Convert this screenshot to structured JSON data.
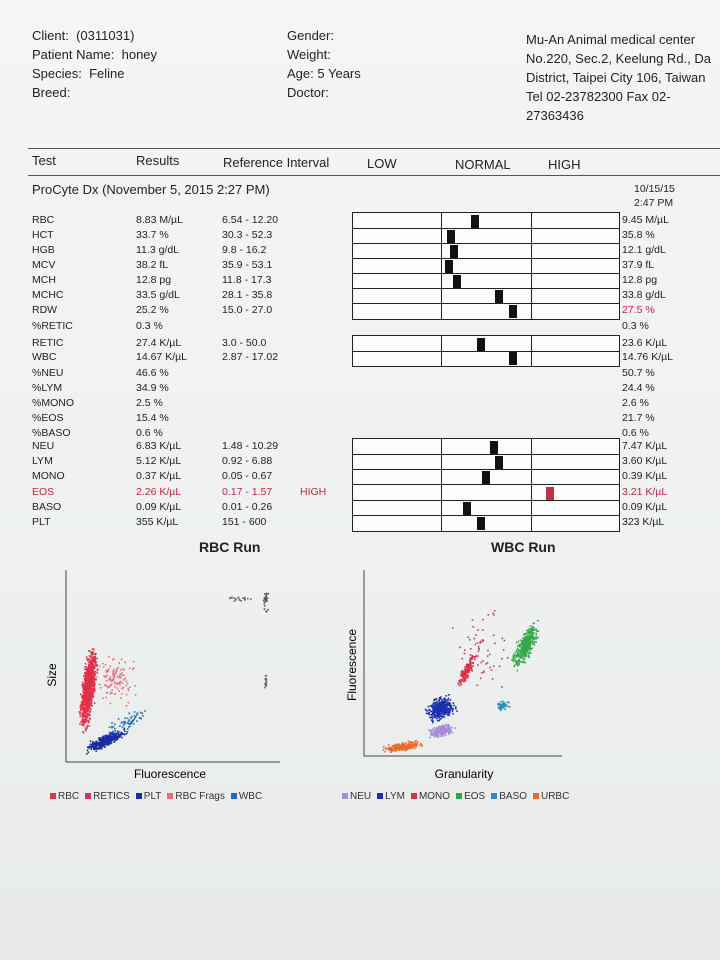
{
  "patient": {
    "client_label": "Client:",
    "client_value": "(0311031)",
    "name_label": "Patient Name:",
    "name_value": "honey",
    "species_label": "Species:",
    "species_value": "Feline",
    "breed_label": "Breed:",
    "gender_label": "Gender:",
    "weight_label": "Weight:",
    "age_label": "Age:",
    "age_value": "5 Years",
    "doctor_label": "Doctor:"
  },
  "clinic": {
    "name": "Mu-An Animal medical center",
    "address1": "No.220, Sec.2, Keelung Rd., Da",
    "address2": "District, Taipei City 106, Taiwan",
    "phone1": "Tel 02-23782300  Fax 02-",
    "phone2": "27363436"
  },
  "columns": {
    "test": "Test",
    "results": "Results",
    "reference": "Reference Interval",
    "low": "LOW",
    "normal": "NORMAL",
    "high": "HIGH"
  },
  "run": {
    "title": "ProCyte Dx (November 5, 2015 2:27 PM)",
    "prev_date": "10/15/15",
    "prev_time": "2:47 PM"
  },
  "rows": [
    {
      "name": "RBC",
      "result": "8.83 M/µL",
      "ref": "6.54 - 12.20",
      "flag": "",
      "prev": "9.45 M/µL",
      "gauge": 0.46
    },
    {
      "name": "HCT",
      "result": "33.7 %",
      "ref": "30.3 - 52.3",
      "flag": "",
      "prev": "35.8 %",
      "gauge": 0.37
    },
    {
      "name": "HGB",
      "result": "11.3 g/dL",
      "ref": "9.8 - 16.2",
      "flag": "",
      "prev": "12.1 g/dL",
      "gauge": 0.38
    },
    {
      "name": "MCV",
      "result": "38.2 fL",
      "ref": "35.9 - 53.1",
      "flag": "",
      "prev": "37.9 fL",
      "gauge": 0.36
    },
    {
      "name": "MCH",
      "result": "12.8 pg",
      "ref": "11.8 - 17.3",
      "flag": "",
      "prev": "12.8 pg",
      "gauge": 0.39
    },
    {
      "name": "MCHC",
      "result": "33.5 g/dL",
      "ref": "28.1 - 35.8",
      "flag": "",
      "prev": "33.8 g/dL",
      "gauge": 0.55
    },
    {
      "name": "RDW",
      "result": "25.2 %",
      "ref": "15.0 - 27.0",
      "flag": "",
      "prev": "27.5 %",
      "gauge": 0.6,
      "prev_warn": true
    },
    {
      "name": "%RETIC",
      "result": "0.3 %",
      "ref": "",
      "flag": "",
      "prev": "0.3 %"
    },
    {
      "name": "RETIC",
      "result": "27.4 K/µL",
      "ref": "3.0 - 50.0",
      "flag": "",
      "prev": "23.6 K/µL",
      "gauge": 0.48
    },
    {
      "name": "WBC",
      "result": "14.67 K/µL",
      "ref": "2.87 - 17.02",
      "flag": "",
      "prev": "14.76 K/µL",
      "gauge": 0.6
    },
    {
      "name": "%NEU",
      "result": "46.6 %",
      "ref": "",
      "flag": "",
      "prev": "50.7 %"
    },
    {
      "name": "%LYM",
      "result": "34.9 %",
      "ref": "",
      "flag": "",
      "prev": "24.4 %"
    },
    {
      "name": "%MONO",
      "result": "2.5 %",
      "ref": "",
      "flag": "",
      "prev": "2.6 %"
    },
    {
      "name": "%EOS",
      "result": "15.4 %",
      "ref": "",
      "flag": "",
      "prev": "21.7 %"
    },
    {
      "name": "%BASO",
      "result": "0.6 %",
      "ref": "",
      "flag": "",
      "prev": "0.6 %"
    },
    {
      "name": "NEU",
      "result": "6.83 K/µL",
      "ref": "1.48 - 10.29",
      "flag": "",
      "prev": "7.47 K/µL",
      "gauge": 0.53
    },
    {
      "name": "LYM",
      "result": "5.12 K/µL",
      "ref": "0.92 - 6.88",
      "flag": "",
      "prev": "3.60 K/µL",
      "gauge": 0.55
    },
    {
      "name": "MONO",
      "result": "0.37 K/µL",
      "ref": "0.05 - 0.67",
      "flag": "",
      "prev": "0.39 K/µL",
      "gauge": 0.5
    },
    {
      "name": "EOS",
      "result": "2.26 K/µL",
      "ref": "0.17 - 1.57",
      "flag": "HIGH",
      "prev": "3.21 K/µL",
      "gauge": 0.74,
      "high": true
    },
    {
      "name": "BASO",
      "result": "0.09 K/µL",
      "ref": "0.01 - 0.26",
      "flag": "",
      "prev": "0.09 K/µL",
      "gauge": 0.43
    },
    {
      "name": "PLT",
      "result": "355 K/µL",
      "ref": "151 - 600",
      "flag": "",
      "prev": "323 K/µL",
      "gauge": 0.48
    }
  ],
  "rbc_plot": {
    "title": "RBC Run",
    "xlabel": "Fluorescence",
    "ylabel": "Size",
    "legend": [
      {
        "label": "RBC",
        "color": "#e0304a"
      },
      {
        "label": "RETICS",
        "color": "#d6306a"
      },
      {
        "label": "PLT",
        "color": "#1a2fa0"
      },
      {
        "label": "RBC Frags",
        "color": "#e8707a"
      },
      {
        "label": "WBC",
        "color": "#1f6fb0"
      }
    ]
  },
  "wbc_plot": {
    "title": "WBC Run",
    "xlabel": "Granularity",
    "ylabel": "Fluorescence",
    "legend": [
      {
        "label": "NEU",
        "color": "#a78bd6"
      },
      {
        "label": "LYM",
        "color": "#1c2fb0"
      },
      {
        "label": "MONO",
        "color": "#d63048"
      },
      {
        "label": "EOS",
        "color": "#2fa84a"
      },
      {
        "label": "BASO",
        "color": "#2a8fb8"
      },
      {
        "label": "URBC",
        "color": "#e86a2a"
      }
    ]
  }
}
